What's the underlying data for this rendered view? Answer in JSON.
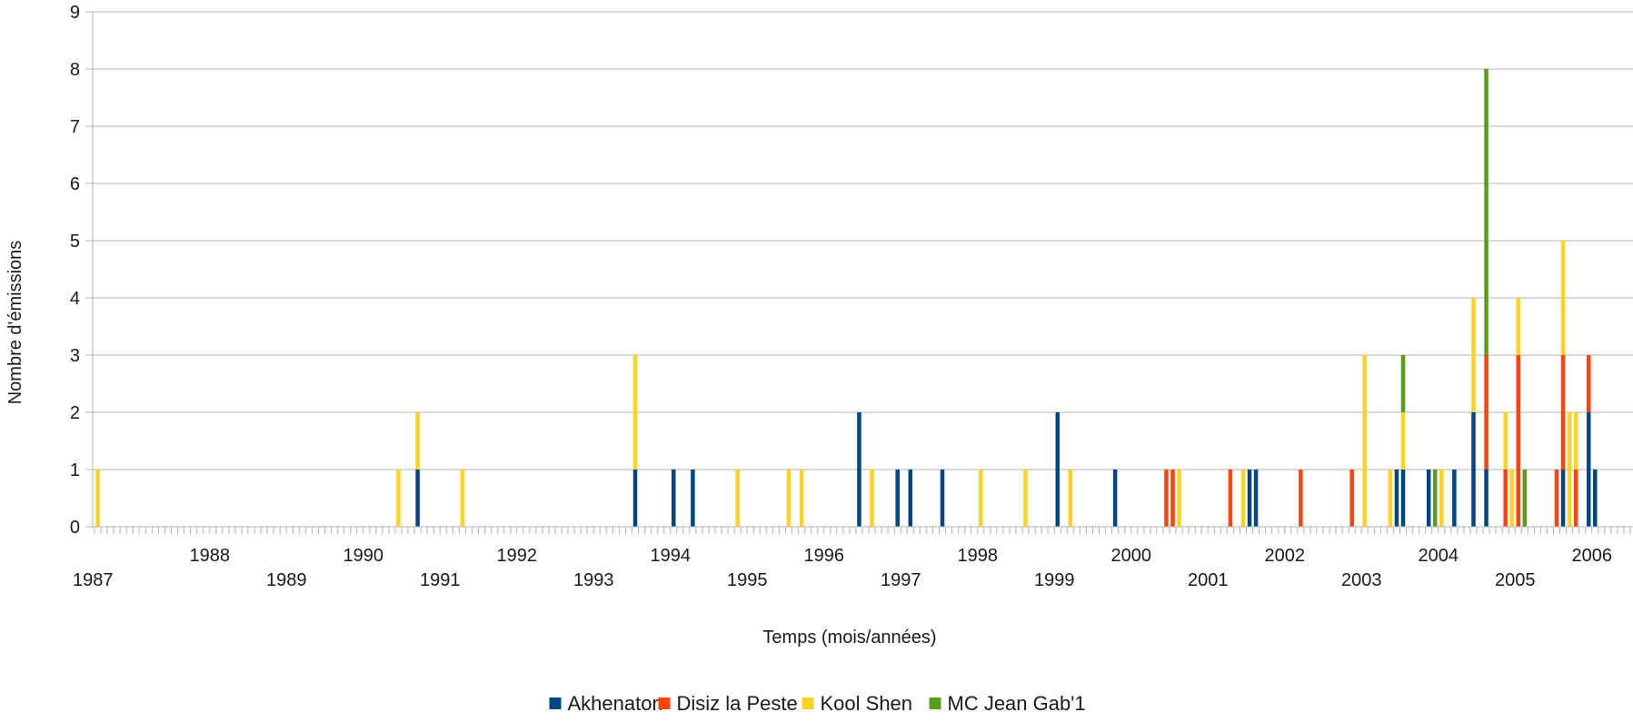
{
  "chart_data": {
    "type": "bar",
    "stacked": true,
    "xlabel": "Temps (mois/années)",
    "ylabel": "Nombre d'émissions",
    "ylim": [
      0,
      9
    ],
    "yticks": [
      0,
      1,
      2,
      3,
      4,
      5,
      6,
      7,
      8,
      9
    ],
    "x_unit": "month",
    "x_start": "1987-01",
    "x_end": "2006-12",
    "x_tick_labels": [
      "1987",
      "1988",
      "1989",
      "1990",
      "1991",
      "1992",
      "1993",
      "1994",
      "1995",
      "1996",
      "1997",
      "1998",
      "1999",
      "2000",
      "2001",
      "2002",
      "2003",
      "2004",
      "2005",
      "2006"
    ],
    "grid": "horizontal",
    "legend_position": "bottom",
    "series": [
      {
        "name": "Akhenaton",
        "color": "#004586",
        "points": [
          {
            "month": "1991-03",
            "value": 1
          },
          {
            "month": "1994-01",
            "value": 1
          },
          {
            "month": "1994-07",
            "value": 1
          },
          {
            "month": "1994-10",
            "value": 1
          },
          {
            "month": "1996-12",
            "value": 2
          },
          {
            "month": "1997-06",
            "value": 1
          },
          {
            "month": "1997-08",
            "value": 1
          },
          {
            "month": "1998-01",
            "value": 1
          },
          {
            "month": "1999-07",
            "value": 2
          },
          {
            "month": "2000-04",
            "value": 1
          },
          {
            "month": "2002-01",
            "value": 1
          },
          {
            "month": "2002-02",
            "value": 1
          },
          {
            "month": "2003-12",
            "value": 1
          },
          {
            "month": "2004-01",
            "value": 1
          },
          {
            "month": "2004-05",
            "value": 1
          },
          {
            "month": "2004-09",
            "value": 1
          },
          {
            "month": "2004-12",
            "value": 2
          },
          {
            "month": "2005-02",
            "value": 1
          },
          {
            "month": "2006-02",
            "value": 1
          },
          {
            "month": "2006-06",
            "value": 2
          },
          {
            "month": "2006-07",
            "value": 1
          }
        ]
      },
      {
        "name": "Disiz la Peste",
        "color": "#ff420e",
        "points": [
          {
            "month": "2000-12",
            "value": 1
          },
          {
            "month": "2001-01",
            "value": 1
          },
          {
            "month": "2001-10",
            "value": 1
          },
          {
            "month": "2002-09",
            "value": 1
          },
          {
            "month": "2003-05",
            "value": 1
          },
          {
            "month": "2005-02",
            "value": 2
          },
          {
            "month": "2005-05",
            "value": 1
          },
          {
            "month": "2005-07",
            "value": 3
          },
          {
            "month": "2006-01",
            "value": 1
          },
          {
            "month": "2006-02",
            "value": 2
          },
          {
            "month": "2006-04",
            "value": 1
          },
          {
            "month": "2006-06",
            "value": 1
          }
        ]
      },
      {
        "name": "Kool Shen",
        "color": "#ffd320",
        "points": [
          {
            "month": "1987-01",
            "value": 1
          },
          {
            "month": "1990-12",
            "value": 1
          },
          {
            "month": "1991-03",
            "value": 1
          },
          {
            "month": "1991-10",
            "value": 1
          },
          {
            "month": "1994-01",
            "value": 2
          },
          {
            "month": "1995-05",
            "value": 1
          },
          {
            "month": "1996-01",
            "value": 1
          },
          {
            "month": "1996-03",
            "value": 1
          },
          {
            "month": "1997-02",
            "value": 1
          },
          {
            "month": "1998-07",
            "value": 1
          },
          {
            "month": "1999-02",
            "value": 1
          },
          {
            "month": "1999-09",
            "value": 1
          },
          {
            "month": "2001-02",
            "value": 1
          },
          {
            "month": "2001-12",
            "value": 1
          },
          {
            "month": "2003-07",
            "value": 3
          },
          {
            "month": "2003-11",
            "value": 1
          },
          {
            "month": "2004-01",
            "value": 1
          },
          {
            "month": "2004-07",
            "value": 1
          },
          {
            "month": "2004-12",
            "value": 2
          },
          {
            "month": "2005-05",
            "value": 1
          },
          {
            "month": "2005-06",
            "value": 1
          },
          {
            "month": "2005-07",
            "value": 1
          },
          {
            "month": "2006-02",
            "value": 2
          },
          {
            "month": "2006-03",
            "value": 2
          },
          {
            "month": "2006-04",
            "value": 1
          }
        ]
      },
      {
        "name": "MC Jean Gab'1",
        "color": "#579d1c",
        "points": [
          {
            "month": "2004-01",
            "value": 1
          },
          {
            "month": "2004-06",
            "value": 1
          },
          {
            "month": "2005-02",
            "value": 5
          },
          {
            "month": "2005-08",
            "value": 1
          }
        ]
      }
    ]
  }
}
